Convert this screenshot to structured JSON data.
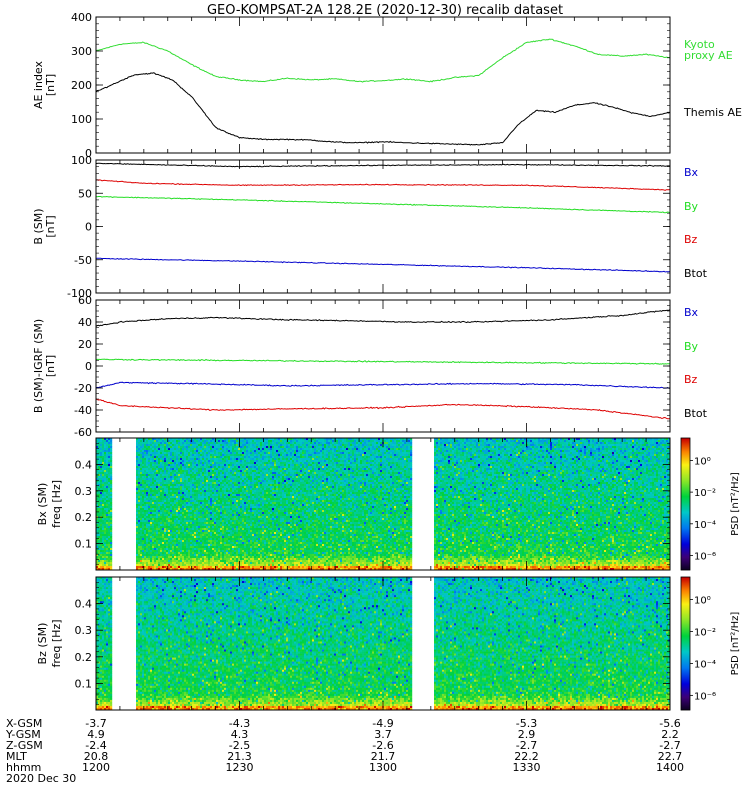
{
  "title": "GEO-KOMPSAT-2A 128.2E (2020-12-30) recalib dataset",
  "colors": {
    "black": "#000000",
    "red": "#dd0000",
    "green": "#22dd22",
    "blue": "#0000cc",
    "kyoto": "#33dd33"
  },
  "chart_data": [
    {
      "type": "line",
      "panel": "ae",
      "ylabel_main": "AE index",
      "ylabel_unit": "[nT]",
      "ylim": [
        0,
        400
      ],
      "yticks": [
        0,
        100,
        200,
        300,
        400
      ],
      "xlim": [
        0,
        120
      ],
      "series": [
        {
          "name": "Kyoto proxy AE",
          "label_lines": [
            "Kyoto",
            "proxy AE"
          ],
          "color": "#33dd33",
          "x": [
            0,
            5,
            10,
            15,
            20,
            25,
            30,
            35,
            40,
            45,
            50,
            55,
            60,
            65,
            70,
            75,
            80,
            85,
            90,
            95,
            100,
            105,
            110,
            115,
            120
          ],
          "y": [
            300,
            320,
            325,
            300,
            260,
            225,
            215,
            210,
            220,
            215,
            218,
            210,
            213,
            218,
            210,
            222,
            228,
            280,
            325,
            335,
            315,
            290,
            285,
            290,
            280
          ]
        },
        {
          "name": "Themis AE",
          "label_lines": [
            "Themis AE"
          ],
          "color": "#000000",
          "x": [
            0,
            4,
            8,
            12,
            16,
            20,
            22,
            25,
            30,
            35,
            40,
            45,
            50,
            55,
            60,
            65,
            70,
            75,
            80,
            85,
            88,
            92,
            96,
            100,
            104,
            108,
            112,
            116,
            120
          ],
          "y": [
            180,
            205,
            230,
            235,
            215,
            165,
            130,
            75,
            45,
            40,
            40,
            38,
            32,
            30,
            33,
            30,
            28,
            26,
            24,
            30,
            80,
            125,
            120,
            140,
            148,
            135,
            118,
            108,
            120
          ]
        }
      ]
    },
    {
      "type": "line",
      "panel": "b",
      "ylabel_main": "B (SM)",
      "ylabel_unit": "[nT]",
      "ylim": [
        -100,
        100
      ],
      "yticks": [
        -100,
        -50,
        0,
        50,
        100
      ],
      "xlim": [
        0,
        120
      ],
      "series": [
        {
          "name": "Bx",
          "color": "#0000cc",
          "x": [
            0,
            30,
            60,
            90,
            120
          ],
          "y": [
            -48,
            -52,
            -57,
            -62,
            -68
          ]
        },
        {
          "name": "By",
          "color": "#22dd22",
          "x": [
            0,
            30,
            60,
            90,
            120
          ],
          "y": [
            45,
            40,
            34,
            28,
            21
          ]
        },
        {
          "name": "Bz",
          "color": "#dd0000",
          "x": [
            0,
            10,
            30,
            60,
            90,
            120
          ],
          "y": [
            70,
            65,
            62,
            63,
            62,
            55
          ]
        },
        {
          "name": "Btot",
          "color": "#000000",
          "x": [
            0,
            30,
            60,
            90,
            120
          ],
          "y": [
            95,
            90,
            92,
            93,
            91
          ]
        }
      ]
    },
    {
      "type": "line",
      "panel": "db",
      "ylabel_main": "B (SM)-IGRF (SM)",
      "ylabel_unit": "[nT]",
      "ylim": [
        -60,
        60
      ],
      "yticks": [
        -60,
        -40,
        -20,
        0,
        20,
        40,
        60
      ],
      "xlim": [
        0,
        120
      ],
      "series": [
        {
          "name": "Bx",
          "color": "#0000cc",
          "x": [
            0,
            5,
            20,
            40,
            60,
            80,
            100,
            120
          ],
          "y": [
            -20,
            -15,
            -16,
            -18,
            -17,
            -16,
            -17,
            -20
          ]
        },
        {
          "name": "By",
          "color": "#22dd22",
          "x": [
            0,
            30,
            60,
            90,
            120
          ],
          "y": [
            6,
            5,
            4,
            3,
            2
          ]
        },
        {
          "name": "Bz",
          "color": "#dd0000",
          "x": [
            0,
            5,
            15,
            25,
            40,
            60,
            75,
            90,
            105,
            120
          ],
          "y": [
            -30,
            -36,
            -38,
            -40,
            -39,
            -38,
            -35,
            -37,
            -40,
            -48
          ]
        },
        {
          "name": "Btot",
          "color": "#000000",
          "x": [
            0,
            5,
            15,
            25,
            40,
            55,
            65,
            80,
            95,
            110,
            120
          ],
          "y": [
            36,
            40,
            43,
            44,
            42,
            41,
            40,
            40,
            42,
            46,
            51
          ]
        }
      ],
      "legend": [
        "Bx",
        "By",
        "Bz",
        "Btot"
      ]
    },
    {
      "type": "heatmap",
      "panel": "spec_bx",
      "ylabel_main": "Bx (SM)",
      "ylabel_unit": "freq [Hz]",
      "ylim": [
        0,
        0.5
      ],
      "yticks": [
        0.1,
        0.2,
        0.3,
        0.4
      ],
      "xlim": [
        0,
        120
      ],
      "gaps": [
        [
          3,
          8
        ],
        [
          66,
          70.5
        ]
      ],
      "colorbar": {
        "label": "PSD [nT²/Hz]",
        "ticks": [
          "10⁰",
          "10⁻²",
          "10⁻⁴",
          "10⁻⁶"
        ]
      }
    },
    {
      "type": "heatmap",
      "panel": "spec_bz",
      "ylabel_main": "Bz (SM)",
      "ylabel_unit": "freq [Hz]",
      "ylim": [
        0,
        0.5
      ],
      "yticks": [
        0.1,
        0.2,
        0.3,
        0.4
      ],
      "xlim": [
        0,
        120
      ],
      "gaps": [
        [
          3,
          8
        ],
        [
          66,
          70.5
        ]
      ],
      "colorbar": {
        "label": "PSD [nT²/Hz]",
        "ticks": [
          "10⁰",
          "10⁻²",
          "10⁻⁴",
          "10⁻⁶"
        ]
      }
    }
  ],
  "x_axis": {
    "tick_minutes": [
      0,
      30,
      60,
      90,
      120
    ],
    "rows": [
      {
        "label": "X-GSM",
        "values": [
          "-3.7",
          "-4.3",
          "-4.9",
          "-5.3",
          "-5.6"
        ]
      },
      {
        "label": "Y-GSM",
        "values": [
          "4.9",
          "4.3",
          "3.7",
          "2.9",
          "2.2"
        ]
      },
      {
        "label": "Z-GSM",
        "values": [
          "-2.4",
          "-2.5",
          "-2.6",
          "-2.7",
          "-2.7"
        ]
      },
      {
        "label": "MLT",
        "values": [
          "20.8",
          "21.3",
          "21.7",
          "22.2",
          "22.7"
        ]
      },
      {
        "label": "hhmm",
        "values": [
          "1200",
          "1230",
          "1300",
          "1330",
          "1400"
        ]
      }
    ],
    "date": "2020 Dec 30"
  }
}
